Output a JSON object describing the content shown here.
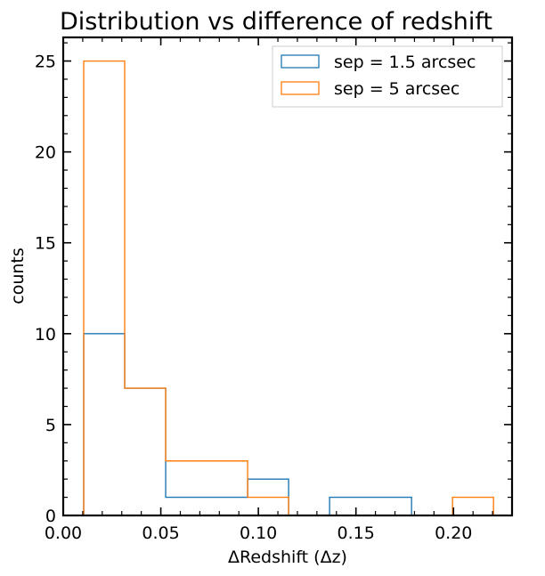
{
  "chart_data": {
    "type": "histogram",
    "title": "Distribution vs difference of redshift",
    "xlabel": "ΔRedshift (Δz)",
    "ylabel": "counts",
    "xlim": [
      0.0,
      0.23
    ],
    "ylim": [
      0,
      26.3
    ],
    "xticks": [
      0.0,
      0.05,
      0.1,
      0.15,
      0.2
    ],
    "xtick_labels": [
      "0.00",
      "0.05",
      "0.10",
      "0.15",
      "0.20"
    ],
    "yticks": [
      0,
      5,
      10,
      15,
      20,
      25
    ],
    "ytick_labels": [
      "0",
      "5",
      "10",
      "15",
      "20",
      "25"
    ],
    "grid": false,
    "legend_position": "top-right",
    "series": [
      {
        "name": "sep = 1.5 arcsec",
        "color": "#1f77b4",
        "bin_edges": [
          0.0105,
          0.0315,
          0.0525,
          0.0735,
          0.0945,
          0.1155,
          0.1365,
          0.1575,
          0.1785,
          0.1995,
          0.2205
        ],
        "counts": [
          10,
          7,
          1,
          1,
          2,
          0,
          1,
          1,
          0,
          0
        ]
      },
      {
        "name": "sep = 5 arcsec",
        "color": "#ff7f0e",
        "bin_edges": [
          0.0105,
          0.0315,
          0.0525,
          0.0735,
          0.0945,
          0.1155,
          0.1365,
          0.1575,
          0.1785,
          0.1995,
          0.2205
        ],
        "counts": [
          25,
          7,
          3,
          3,
          1,
          0,
          0,
          0,
          0,
          1
        ]
      }
    ]
  }
}
